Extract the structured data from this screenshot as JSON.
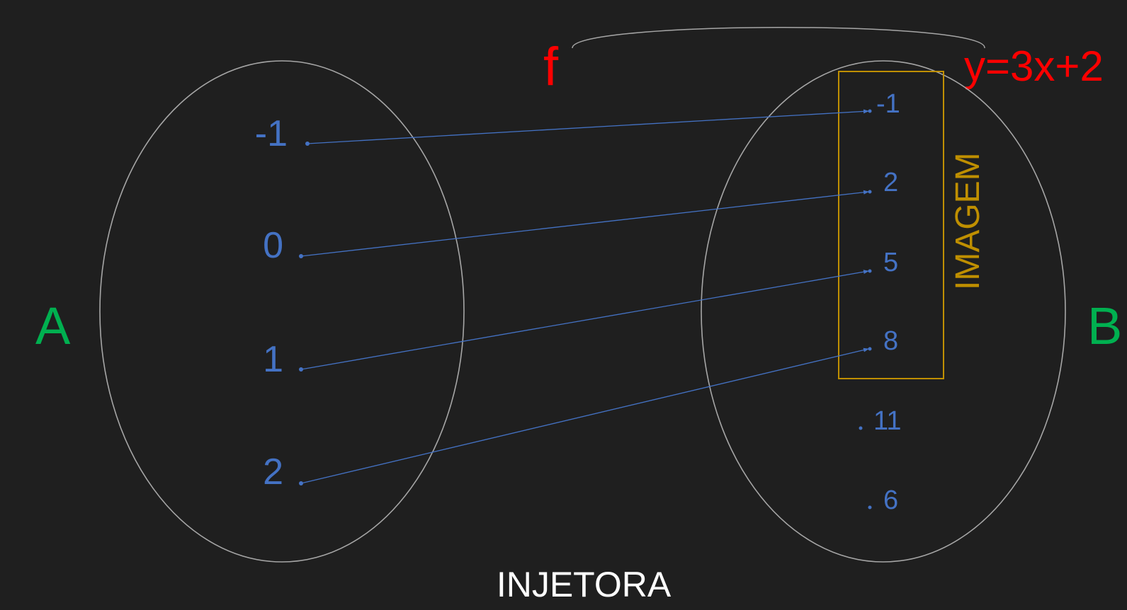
{
  "function_name": "f",
  "formula": "y=3x+2",
  "set_a": {
    "label": "A",
    "elements": [
      "-1",
      "0",
      "1",
      "2"
    ]
  },
  "set_b": {
    "label": "B",
    "elements": [
      "-1",
      "2",
      "5",
      "8",
      "11",
      "6"
    ]
  },
  "image_label": "IMAGEM",
  "classification": "INJETORA",
  "mappings": [
    {
      "from": "-1",
      "to": "-1"
    },
    {
      "from": "0",
      "to": "2"
    },
    {
      "from": "1",
      "to": "5"
    },
    {
      "from": "2",
      "to": "8"
    }
  ],
  "colors": {
    "background": "#1f1f1f",
    "set_outline": "#a6a6a6",
    "element_text": "#4472c4",
    "arrow": "#4472c4",
    "set_label": "#00b050",
    "function_text": "#ff0000",
    "image_box": "#bf8f00",
    "caption": "#ffffff"
  }
}
